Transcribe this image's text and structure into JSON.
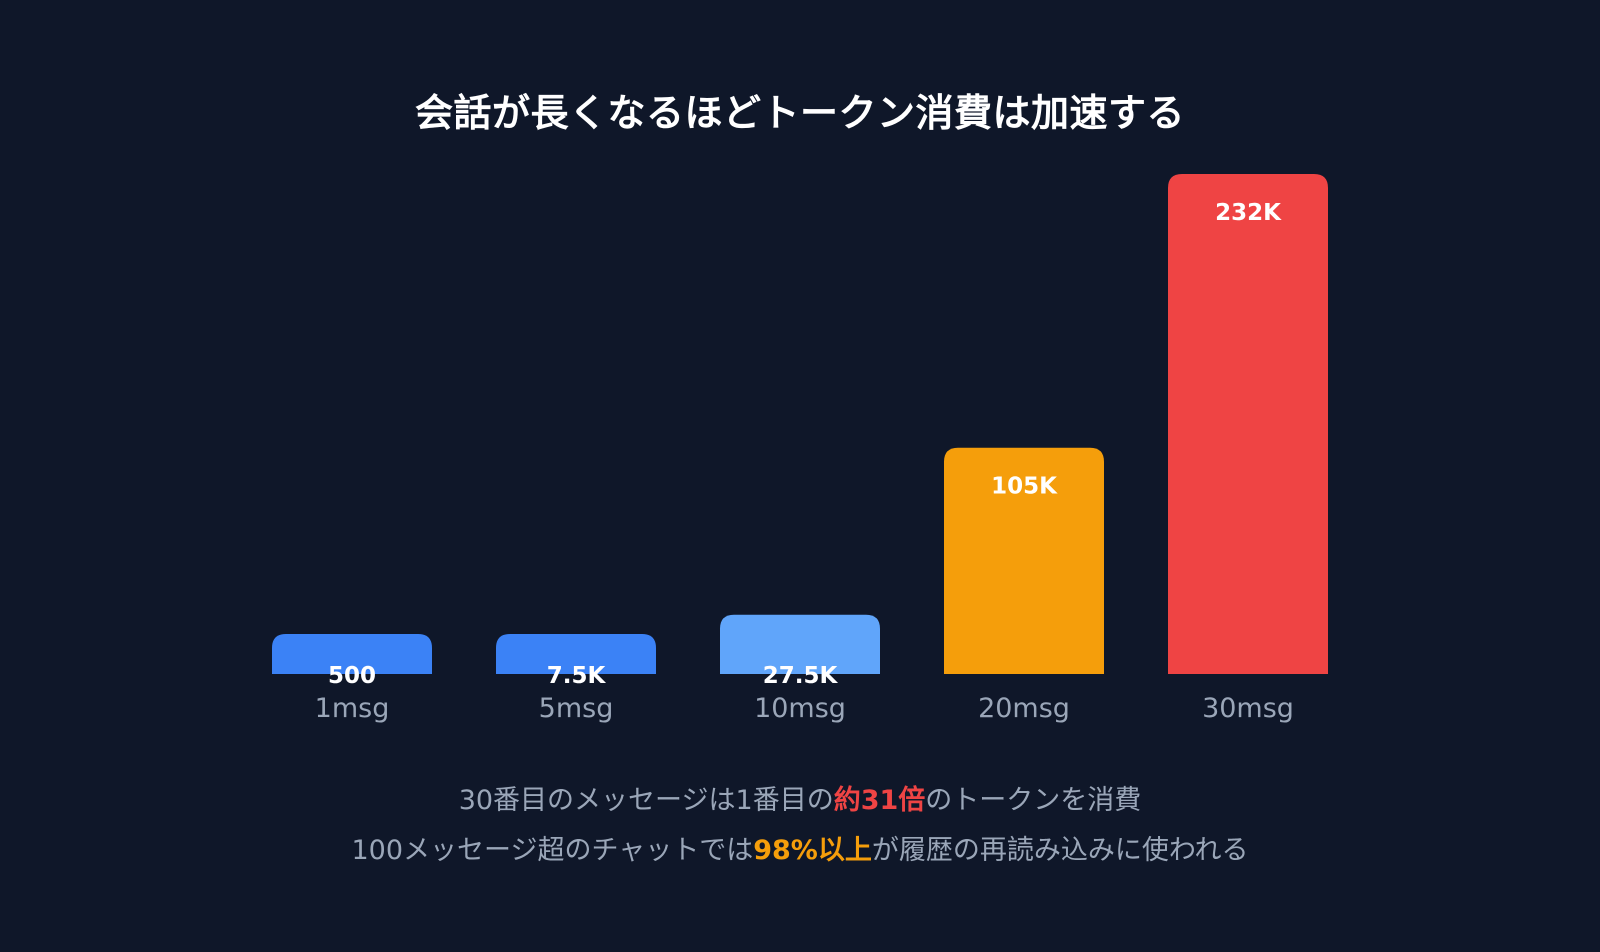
{
  "colors": {
    "background": "#0f1729",
    "muted_text": "#9aa6b8",
    "blue": "#3b82f6",
    "light_blue": "#60a5fa",
    "orange": "#f59e0b",
    "red": "#ef4444"
  },
  "chart_data": {
    "type": "bar",
    "title": "会話が長くなるほどトークン消費は加速する",
    "xlabel": "",
    "ylabel": "",
    "ylim": [
      0,
      232000
    ],
    "grid": false,
    "legend": "none",
    "categories": [
      "1msg",
      "5msg",
      "10msg",
      "20msg",
      "30msg"
    ],
    "values": [
      500,
      7500,
      27500,
      105000,
      232000
    ],
    "value_labels": [
      "500",
      "7.5K",
      "27.5K",
      "105K",
      "232K"
    ],
    "bar_colors": [
      "#3b82f6",
      "#3b82f6",
      "#60a5fa",
      "#f59e0b",
      "#ef4444"
    ]
  },
  "captions": {
    "line1": {
      "prefix": "30番目のメッセージは1番目の",
      "highlight": "約31倍",
      "highlight_color": "#ef4444",
      "suffix": "のトークンを消費"
    },
    "line2": {
      "prefix": "100メッセージ超のチャットでは",
      "highlight": "98%以上",
      "highlight_color": "#f59e0b",
      "suffix": "が履歴の再読み込みに使われる"
    }
  }
}
